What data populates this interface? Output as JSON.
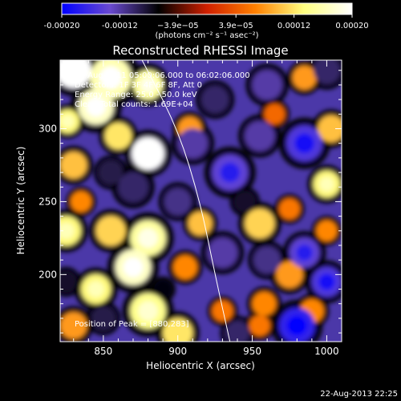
{
  "chart_data": {
    "type": "heatmap",
    "title": "Reconstructed RHESSI Image",
    "xlabel": "Heliocentric X (arcsec)",
    "ylabel": "Heliocentric Y (arcsec)",
    "xlim": [
      821,
      1010
    ],
    "ylim": [
      154,
      347
    ],
    "xticks": [
      850,
      900,
      950,
      1000
    ],
    "yticks": [
      200,
      250,
      300
    ],
    "colorbar": {
      "range": [
        -0.0002,
        0.0002
      ],
      "tick_labels": [
        "-0.00020",
        "-0.00012",
        "−3.9e−05",
        "3.9e−05",
        "0.00012",
        "0.00020"
      ],
      "units_label": "(photons cm⁻² s⁻¹ asec⁻²)",
      "colors": [
        "#0000ff",
        "#6a4ad0",
        "#000000",
        "#d02000",
        "#ff8000",
        "#ffff80",
        "#ffffff"
      ]
    },
    "info": {
      "line1": "11-Aug-2011 05:00:06.000 to 06:02:06.000",
      "line2": "Detectors: 1F 3F 4F 6F 8F, Att 0",
      "line3": "Energy Range: 25.0 - 50.0 keV",
      "line4": "Clean    Total counts: 1.69E+04"
    },
    "peak_label": "Position of Peak = [880,283]",
    "peak": [
      880,
      283
    ],
    "limb_curve": [
      [
        876,
        347
      ],
      [
        900,
        300
      ],
      [
        915,
        250
      ],
      [
        925,
        200
      ],
      [
        935,
        154
      ]
    ],
    "blobs": [
      {
        "x": 830,
        "y": 340,
        "r": 12,
        "v": 0.0002
      },
      {
        "x": 855,
        "y": 335,
        "r": 14,
        "v": 0.00016
      },
      {
        "x": 880,
        "y": 330,
        "r": 10,
        "v": 0.00015
      },
      {
        "x": 845,
        "y": 315,
        "r": 12,
        "v": 0.00017
      },
      {
        "x": 880,
        "y": 283,
        "r": 11,
        "v": 0.0002
      },
      {
        "x": 860,
        "y": 295,
        "r": 9,
        "v": 0.00012
      },
      {
        "x": 826,
        "y": 305,
        "r": 8,
        "v": 0.00013
      },
      {
        "x": 830,
        "y": 275,
        "r": 9,
        "v": 0.0001
      },
      {
        "x": 825,
        "y": 230,
        "r": 10,
        "v": 0.00013
      },
      {
        "x": 855,
        "y": 230,
        "r": 10,
        "v": 0.00011
      },
      {
        "x": 880,
        "y": 225,
        "r": 12,
        "v": 0.00015
      },
      {
        "x": 870,
        "y": 205,
        "r": 12,
        "v": 0.00017
      },
      {
        "x": 845,
        "y": 190,
        "r": 10,
        "v": 0.00013
      },
      {
        "x": 880,
        "y": 175,
        "r": 12,
        "v": 0.00014
      },
      {
        "x": 900,
        "y": 160,
        "r": 10,
        "v": 0.00012
      },
      {
        "x": 830,
        "y": 165,
        "r": 9,
        "v": 8e-05
      },
      {
        "x": 908,
        "y": 300,
        "r": 8,
        "v": 8e-05
      },
      {
        "x": 915,
        "y": 235,
        "r": 8,
        "v": 0.0001
      },
      {
        "x": 905,
        "y": 205,
        "r": 8,
        "v": 7e-05
      },
      {
        "x": 955,
        "y": 235,
        "r": 10,
        "v": 0.00011
      },
      {
        "x": 975,
        "y": 200,
        "r": 9,
        "v": 8e-05
      },
      {
        "x": 958,
        "y": 180,
        "r": 8,
        "v": 7e-05
      },
      {
        "x": 1003,
        "y": 300,
        "r": 9,
        "v": 0.0001
      },
      {
        "x": 1000,
        "y": 262,
        "r": 9,
        "v": 0.00013
      },
      {
        "x": 1000,
        "y": 230,
        "r": 7,
        "v": 7e-05
      },
      {
        "x": 975,
        "y": 245,
        "r": 7,
        "v": 6e-05
      },
      {
        "x": 985,
        "y": 335,
        "r": 8,
        "v": 8e-05
      },
      {
        "x": 965,
        "y": 310,
        "r": 7,
        "v": 5e-05
      },
      {
        "x": 955,
        "y": 165,
        "r": 7,
        "v": 6e-05
      },
      {
        "x": 990,
        "y": 175,
        "r": 8,
        "v": 7e-05
      },
      {
        "x": 930,
        "y": 175,
        "r": 7,
        "v": 6e-05
      },
      {
        "x": 835,
        "y": 250,
        "r": 7,
        "v": 7e-05
      },
      {
        "x": 910,
        "y": 290,
        "r": 10,
        "v": -0.00012
      },
      {
        "x": 935,
        "y": 270,
        "r": 12,
        "v": -0.00014
      },
      {
        "x": 955,
        "y": 295,
        "r": 10,
        "v": -0.00012
      },
      {
        "x": 985,
        "y": 290,
        "r": 12,
        "v": -0.00015
      },
      {
        "x": 925,
        "y": 320,
        "r": 9,
        "v": -0.0001
      },
      {
        "x": 960,
        "y": 330,
        "r": 10,
        "v": -0.00012
      },
      {
        "x": 1000,
        "y": 340,
        "r": 9,
        "v": -0.0001
      },
      {
        "x": 870,
        "y": 260,
        "r": 10,
        "v": -0.0001
      },
      {
        "x": 855,
        "y": 270,
        "r": 8,
        "v": -9e-05
      },
      {
        "x": 900,
        "y": 250,
        "r": 9,
        "v": -0.00011
      },
      {
        "x": 930,
        "y": 215,
        "r": 10,
        "v": -0.00012
      },
      {
        "x": 960,
        "y": 210,
        "r": 9,
        "v": -0.00011
      },
      {
        "x": 985,
        "y": 215,
        "r": 10,
        "v": -0.00014
      },
      {
        "x": 1000,
        "y": 195,
        "r": 10,
        "v": -0.00015
      },
      {
        "x": 980,
        "y": 165,
        "r": 12,
        "v": -0.00017
      },
      {
        "x": 940,
        "y": 160,
        "r": 8,
        "v": -0.0001
      },
      {
        "x": 850,
        "y": 170,
        "r": 8,
        "v": -9e-05
      },
      {
        "x": 825,
        "y": 195,
        "r": 7,
        "v": -8e-05
      },
      {
        "x": 890,
        "y": 190,
        "r": 6,
        "v": -7e-05
      },
      {
        "x": 945,
        "y": 250,
        "r": 7,
        "v": -8e-05
      }
    ]
  },
  "footer": {
    "timestamp": "22-Aug-2013 22:25"
  }
}
